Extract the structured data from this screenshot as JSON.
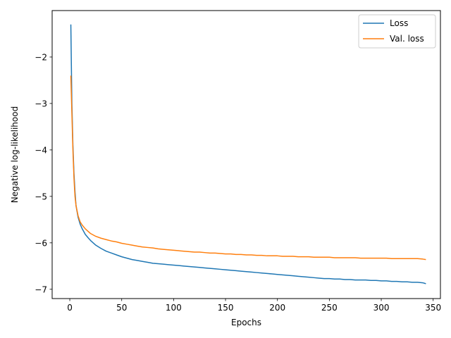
{
  "chart_data": {
    "type": "line",
    "xlabel": "Epochs",
    "ylabel": "Negative log-likelihood",
    "xlim": [
      -17,
      357
    ],
    "ylim": [
      -7.2,
      -1.0
    ],
    "xticks": [
      0,
      50,
      100,
      150,
      200,
      250,
      300,
      350
    ],
    "xtick_labels": [
      "0",
      "50",
      "100",
      "150",
      "200",
      "250",
      "300",
      "350"
    ],
    "yticks": [
      -2,
      -3,
      -4,
      -5,
      -6,
      -7
    ],
    "ytick_labels": [
      "−2",
      "−3",
      "−4",
      "−5",
      "−6",
      "−7"
    ],
    "grid": false,
    "legend_position": "top-right",
    "series": [
      {
        "name": "Loss",
        "color": "#1f77b4",
        "x": [
          1,
          2,
          3,
          4,
          5,
          6,
          8,
          10,
          12,
          15,
          18,
          20,
          25,
          30,
          35,
          40,
          45,
          50,
          55,
          60,
          65,
          70,
          75,
          80,
          85,
          90,
          95,
          100,
          105,
          110,
          115,
          120,
          125,
          130,
          135,
          140,
          145,
          150,
          155,
          160,
          165,
          170,
          175,
          180,
          185,
          190,
          195,
          200,
          205,
          210,
          215,
          220,
          225,
          230,
          235,
          240,
          245,
          250,
          255,
          260,
          265,
          270,
          275,
          280,
          285,
          290,
          295,
          300,
          305,
          310,
          315,
          320,
          325,
          330,
          335,
          340,
          343
        ],
        "y": [
          -1.3,
          -3.0,
          -3.9,
          -4.5,
          -4.9,
          -5.2,
          -5.45,
          -5.6,
          -5.7,
          -5.82,
          -5.9,
          -5.95,
          -6.05,
          -6.12,
          -6.18,
          -6.22,
          -6.26,
          -6.3,
          -6.33,
          -6.36,
          -6.38,
          -6.4,
          -6.42,
          -6.44,
          -6.45,
          -6.46,
          -6.47,
          -6.48,
          -6.49,
          -6.5,
          -6.51,
          -6.52,
          -6.53,
          -6.54,
          -6.55,
          -6.56,
          -6.57,
          -6.58,
          -6.59,
          -6.6,
          -6.61,
          -6.62,
          -6.63,
          -6.64,
          -6.65,
          -6.66,
          -6.67,
          -6.68,
          -6.69,
          -6.7,
          -6.71,
          -6.72,
          -6.73,
          -6.74,
          -6.75,
          -6.76,
          -6.77,
          -6.77,
          -6.78,
          -6.78,
          -6.79,
          -6.79,
          -6.8,
          -6.8,
          -6.8,
          -6.81,
          -6.81,
          -6.82,
          -6.82,
          -6.83,
          -6.83,
          -6.84,
          -6.84,
          -6.85,
          -6.85,
          -6.86,
          -6.88
        ]
      },
      {
        "name": "Val. loss",
        "color": "#ff7f0e",
        "x": [
          1,
          2,
          3,
          4,
          5,
          6,
          8,
          10,
          12,
          15,
          18,
          20,
          25,
          30,
          35,
          40,
          45,
          50,
          55,
          60,
          65,
          70,
          75,
          80,
          85,
          90,
          95,
          100,
          105,
          110,
          115,
          120,
          125,
          130,
          135,
          140,
          145,
          150,
          155,
          160,
          165,
          170,
          175,
          180,
          185,
          190,
          195,
          200,
          205,
          210,
          215,
          220,
          225,
          230,
          235,
          240,
          245,
          250,
          255,
          260,
          265,
          270,
          275,
          280,
          285,
          290,
          295,
          300,
          305,
          310,
          315,
          320,
          325,
          330,
          335,
          340,
          343
        ],
        "y": [
          -2.4,
          -3.2,
          -4.0,
          -4.6,
          -5.0,
          -5.2,
          -5.42,
          -5.55,
          -5.62,
          -5.7,
          -5.76,
          -5.8,
          -5.86,
          -5.9,
          -5.93,
          -5.96,
          -5.98,
          -6.01,
          -6.03,
          -6.05,
          -6.07,
          -6.09,
          -6.1,
          -6.11,
          -6.13,
          -6.14,
          -6.15,
          -6.16,
          -6.17,
          -6.18,
          -6.19,
          -6.2,
          -6.2,
          -6.21,
          -6.22,
          -6.22,
          -6.23,
          -6.24,
          -6.24,
          -6.25,
          -6.25,
          -6.26,
          -6.26,
          -6.27,
          -6.27,
          -6.28,
          -6.28,
          -6.28,
          -6.29,
          -6.29,
          -6.29,
          -6.3,
          -6.3,
          -6.3,
          -6.31,
          -6.31,
          -6.31,
          -6.31,
          -6.32,
          -6.32,
          -6.32,
          -6.32,
          -6.32,
          -6.33,
          -6.33,
          -6.33,
          -6.33,
          -6.33,
          -6.33,
          -6.34,
          -6.34,
          -6.34,
          -6.34,
          -6.34,
          -6.34,
          -6.35,
          -6.36
        ]
      }
    ]
  }
}
